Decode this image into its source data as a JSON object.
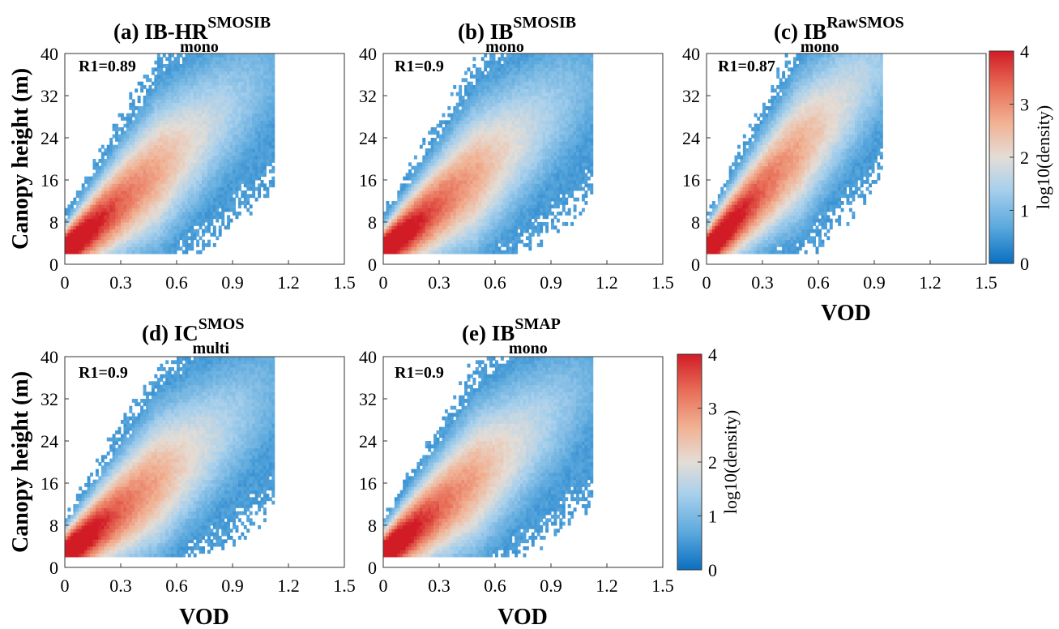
{
  "chart_data": [
    {
      "type": "heatmap",
      "panel": "a",
      "title_main": "(a) IB-HR",
      "title_sup": "SMOSIB",
      "title_sub": "mono",
      "r_label": "R1=0.89",
      "ylabel": "Canopy height (m)",
      "xlabel": "",
      "xlim": [
        0,
        1.5
      ],
      "ylim": [
        0,
        40
      ],
      "xticks": [
        "0",
        "0.3",
        "0.6",
        "0.9",
        "1.2",
        "1.5"
      ],
      "yticks": [
        "0",
        "8",
        "16",
        "24",
        "32",
        "40"
      ],
      "density_shape": {
        "slope": 30.5,
        "intercept": 2.5,
        "x_max": 1.12,
        "peak_log10": 3.8
      }
    },
    {
      "type": "heatmap",
      "panel": "b",
      "title_main": "(b) IB",
      "title_sup": "SMOSIB",
      "title_sub": "mono",
      "r_label": "R1=0.9",
      "ylabel": "",
      "xlabel": "",
      "xlim": [
        0,
        1.5
      ],
      "ylim": [
        0,
        40
      ],
      "xticks": [
        "0",
        "0.3",
        "0.6",
        "0.9",
        "1.2",
        "1.5"
      ],
      "yticks": [
        "0",
        "8",
        "16",
        "24",
        "32",
        "40"
      ],
      "density_shape": {
        "slope": 29,
        "intercept": 2.5,
        "x_max": 1.15,
        "peak_log10": 3.8
      }
    },
    {
      "type": "heatmap",
      "panel": "c",
      "title_main": "(c) IB",
      "title_sup": "RawSMOS",
      "title_sub": "mono",
      "r_label": "R1=0.87",
      "ylabel": "",
      "xlabel": "VOD",
      "xlim": [
        0,
        1.5
      ],
      "ylim": [
        0,
        40
      ],
      "xticks": [
        "0",
        "0.3",
        "0.6",
        "0.9",
        "1.2",
        "1.5"
      ],
      "yticks": [
        "0",
        "8",
        "16",
        "24",
        "32",
        "40"
      ],
      "density_shape": {
        "slope": 38.5,
        "intercept": 2.5,
        "x_max": 0.9,
        "peak_log10": 3.8
      }
    },
    {
      "type": "heatmap",
      "panel": "d",
      "title_main": "(d) IC",
      "title_sup": "SMOS",
      "title_sub": "multi",
      "r_label": "R1=0.9",
      "ylabel": "Canopy height (m)",
      "xlabel": "VOD",
      "xlim": [
        0,
        1.5
      ],
      "ylim": [
        0,
        40
      ],
      "xticks": [
        "0",
        "0.3",
        "0.6",
        "0.9",
        "1.2",
        "1.5"
      ],
      "yticks": [
        "0",
        "8",
        "16",
        "24",
        "32",
        "40"
      ],
      "density_shape": {
        "slope": 28,
        "intercept": 2.5,
        "x_max": 1.2,
        "peak_log10": 3.8
      }
    },
    {
      "type": "heatmap",
      "panel": "e",
      "title_main": "(e) IB",
      "title_sup": "SMAP",
      "title_sub": "mono",
      "r_label": "R1=0.9",
      "ylabel": "",
      "xlabel": "VOD",
      "xlim": [
        0,
        1.5
      ],
      "ylim": [
        0,
        40
      ],
      "xticks": [
        "0",
        "0.3",
        "0.6",
        "0.9",
        "1.2",
        "1.5"
      ],
      "yticks": [
        "0",
        "8",
        "16",
        "24",
        "32",
        "40"
      ],
      "density_shape": {
        "slope": 29,
        "intercept": 2.5,
        "x_max": 1.15,
        "peak_log10": 3.8
      }
    }
  ],
  "colorbar": {
    "label": "log10(density)",
    "range": [
      0,
      4
    ],
    "ticks": [
      "0",
      "1",
      "2",
      "3",
      "4"
    ],
    "colors": [
      "#0a6fc0",
      "#5aa8dd",
      "#a8d0ec",
      "#e4ddd6",
      "#f1b294",
      "#e86e58",
      "#d11c26"
    ]
  }
}
